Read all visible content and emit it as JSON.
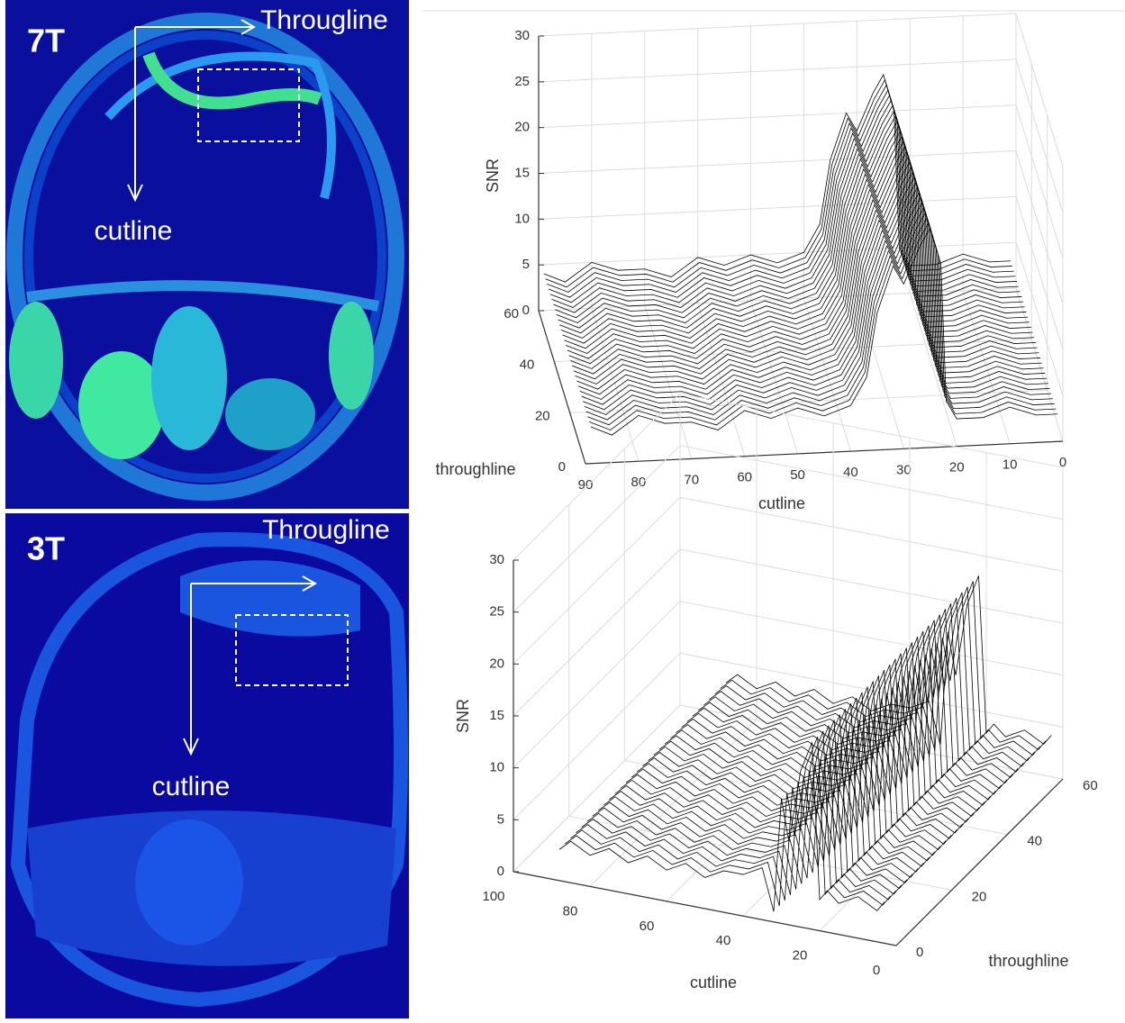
{
  "images": [
    {
      "label": "7T",
      "horizontal_arrow": "Througline",
      "vertical_arrow": "cutline"
    },
    {
      "label": "3T",
      "horizontal_arrow": "Througline",
      "vertical_arrow": "cutline"
    }
  ],
  "chart_data": [
    {
      "type": "surface",
      "zlabel": "SNR",
      "xlabel": "cutline",
      "ylabel": "throughline",
      "x": [
        89,
        85,
        80,
        75,
        70,
        65,
        60,
        55,
        50,
        45,
        40,
        37,
        35,
        32,
        30,
        27,
        25,
        23,
        22,
        20,
        15,
        10,
        5,
        1
      ],
      "values": [
        4,
        3,
        5,
        4,
        4,
        3,
        5,
        4,
        5,
        4,
        5,
        8,
        15,
        20,
        18,
        22,
        24,
        20,
        5,
        3,
        3,
        4,
        3,
        3
      ],
      "xlim": [
        90,
        0
      ],
      "xticks": [
        90,
        80,
        70,
        60,
        50,
        40,
        30,
        20,
        10,
        0
      ],
      "ylim": [
        0,
        60
      ],
      "yticks": [
        0,
        20,
        40,
        60
      ],
      "zlim": [
        0,
        30
      ],
      "zticks": [
        0,
        5,
        10,
        15,
        20,
        25,
        30
      ],
      "color": "#000000",
      "grid": true
    },
    {
      "type": "surface",
      "zlabel": "SNR",
      "xlabel": "cutline",
      "ylabel": "throughline",
      "x": [
        88,
        85,
        80,
        75,
        70,
        65,
        60,
        55,
        50,
        45,
        40,
        35,
        32,
        30,
        28,
        25,
        22,
        20,
        18,
        15,
        10,
        5,
        3
      ],
      "values": [
        3,
        4,
        3,
        4,
        3,
        4,
        3,
        4,
        3,
        4,
        4,
        5,
        1,
        12,
        8,
        15,
        18,
        3,
        4,
        3,
        4,
        3,
        4
      ],
      "xlim": [
        100,
        0
      ],
      "xticks": [
        100,
        80,
        60,
        40,
        20,
        0
      ],
      "ylim": [
        0,
        60
      ],
      "yticks": [
        0,
        20,
        40,
        60
      ],
      "zlim": [
        0,
        30
      ],
      "zticks": [
        0,
        5,
        10,
        15,
        20,
        25,
        30
      ],
      "color": "#000000",
      "grid": true
    }
  ]
}
